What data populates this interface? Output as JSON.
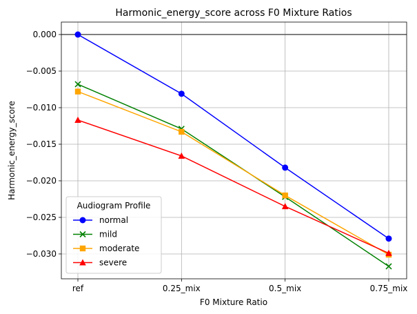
{
  "chart_data": {
    "type": "line",
    "title": "Harmonic_energy_score across F0 Mixture Ratios",
    "xlabel": "F0 Mixture Ratio",
    "ylabel": "Harmonic_energy_score",
    "categories": [
      "ref",
      "0.25_mix",
      "0.5_mix",
      "0.75_mix"
    ],
    "ylim": [
      -0.0334,
      0.0017
    ],
    "yticks": [
      0.0,
      -0.005,
      -0.01,
      -0.015,
      -0.02,
      -0.025,
      -0.03
    ],
    "ytick_labels": [
      "0.000",
      "−0.005",
      "−0.010",
      "−0.015",
      "−0.020",
      "−0.025",
      "−0.030"
    ],
    "grid": true,
    "reference_line": 0.0,
    "legend": {
      "title": "Audiogram Profile",
      "placement": "lower-left"
    },
    "series": [
      {
        "name": "normal",
        "color": "#0000ff",
        "marker": "circle",
        "values": [
          0.0,
          -0.0081,
          -0.0182,
          -0.0279
        ]
      },
      {
        "name": "mild",
        "color": "#008000",
        "marker": "x",
        "values": [
          -0.0068,
          -0.0129,
          -0.0222,
          -0.0317
        ]
      },
      {
        "name": "moderate",
        "color": "#ffa500",
        "marker": "square",
        "values": [
          -0.0078,
          -0.0133,
          -0.022,
          -0.0301
        ]
      },
      {
        "name": "severe",
        "color": "#ff0000",
        "marker": "triangle",
        "values": [
          -0.0117,
          -0.0166,
          -0.0235,
          -0.0299
        ]
      }
    ]
  }
}
